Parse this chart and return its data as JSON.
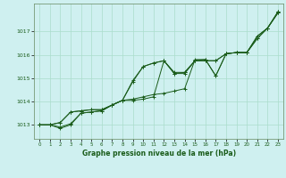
{
  "background_color": "#cff0f0",
  "grid_color": "#aaddcc",
  "line_color": "#1a5c1a",
  "xlabel": "Graphe pression niveau de la mer (hPa)",
  "ylim": [
    1012.4,
    1018.2
  ],
  "xlim": [
    -0.5,
    23.5
  ],
  "yticks": [
    1013,
    1014,
    1015,
    1016,
    1017
  ],
  "xticks": [
    0,
    1,
    2,
    3,
    4,
    5,
    6,
    7,
    8,
    9,
    10,
    11,
    12,
    13,
    14,
    15,
    16,
    17,
    18,
    19,
    20,
    21,
    22,
    23
  ],
  "series": [
    [
      1013.0,
      1013.0,
      1012.85,
      1013.0,
      1013.5,
      1013.55,
      1013.6,
      1013.85,
      1014.05,
      1014.85,
      1015.5,
      1015.65,
      1015.75,
      1015.2,
      1015.2,
      1015.75,
      1015.75,
      1015.75,
      1016.05,
      1016.1,
      1016.1,
      1016.7,
      1017.15,
      1017.8
    ],
    [
      1013.0,
      1013.0,
      1012.9,
      1013.05,
      1013.5,
      1013.55,
      1013.6,
      1013.85,
      1014.05,
      1014.05,
      1014.1,
      1014.2,
      1015.75,
      1015.25,
      1015.25,
      1015.75,
      1015.75,
      1015.75,
      1016.05,
      1016.1,
      1016.1,
      1016.7,
      1017.15,
      1017.8
    ],
    [
      1013.0,
      1013.0,
      1013.1,
      1013.55,
      1013.6,
      1013.65,
      1013.65,
      1013.85,
      1014.05,
      1014.9,
      1015.5,
      1015.65,
      1015.75,
      1015.2,
      1015.25,
      1015.75,
      1015.8,
      1015.1,
      1016.05,
      1016.1,
      1016.1,
      1016.8,
      1017.15,
      1017.85
    ],
    [
      1013.0,
      1013.0,
      1013.1,
      1013.55,
      1013.6,
      1013.65,
      1013.65,
      1013.85,
      1014.05,
      1014.1,
      1014.2,
      1014.3,
      1014.35,
      1014.45,
      1014.55,
      1015.8,
      1015.8,
      1015.1,
      1016.05,
      1016.1,
      1016.1,
      1016.8,
      1017.15,
      1017.85
    ]
  ]
}
